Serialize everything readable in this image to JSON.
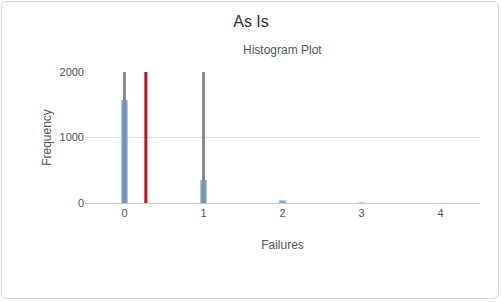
{
  "chart_data": {
    "type": "bar",
    "title": "As Is",
    "subtitle": "Histogram Plot",
    "x_label": "Failures",
    "y_label": "Frequency",
    "x": [
      0,
      1,
      2,
      3,
      4
    ],
    "values": [
      1570,
      350,
      40,
      8,
      1
    ],
    "color": "#6aaaf0",
    "xlim": [
      -0.5,
      4.5
    ],
    "xticks": [
      0,
      1,
      2,
      3,
      4
    ],
    "ylim": [
      0,
      2000
    ],
    "yticks": [
      0,
      1000,
      2000
    ],
    "grid": true,
    "reference_lines": [
      {
        "x": 0,
        "color": "#8c8c8c"
      },
      {
        "x": 1,
        "color": "#8c8c8c"
      },
      {
        "x": 0.27,
        "color": "#c8102e"
      }
    ]
  }
}
